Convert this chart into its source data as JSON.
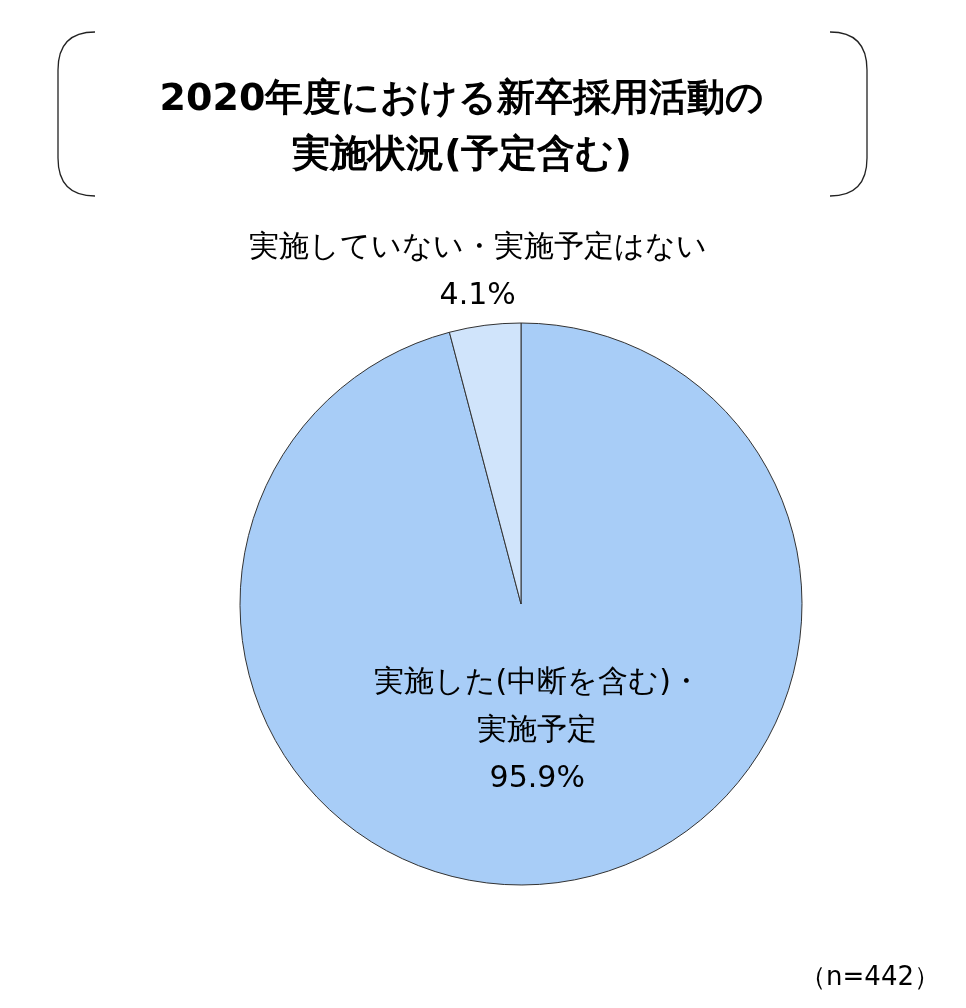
{
  "chart_data": {
    "type": "pie",
    "title": "2020年度における新卒採用活動の実施状況(予定含む)",
    "categories": [
      "実施した(中断を含む)・実施予定",
      "実施していない・実施予定はない"
    ],
    "values": [
      95.9,
      4.1
    ],
    "colors": [
      "#a8cdf7",
      "#d0e4fb"
    ],
    "value_labels": [
      "95.9%",
      "4.1%"
    ],
    "annotations": [
      "（n=442）"
    ]
  }
}
